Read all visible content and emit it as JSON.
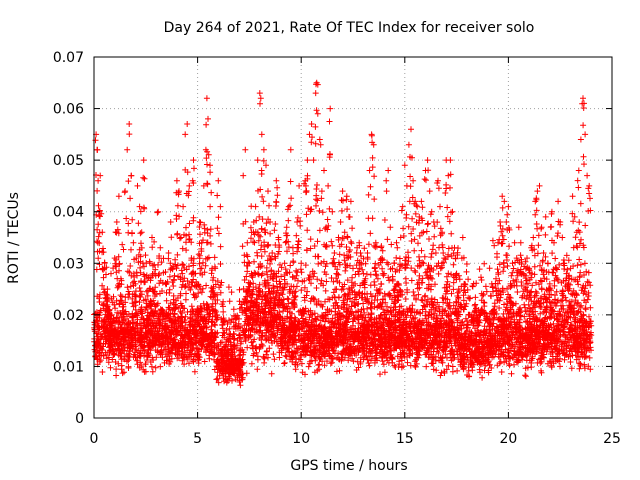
{
  "chart_data": {
    "type": "scatter",
    "title": "Day 264 of 2021, Rate Of TEC Index for receiver solo",
    "xlabel": "GPS time / hours",
    "ylabel": "ROTI / TECUs",
    "xlim": [
      0,
      25
    ],
    "ylim": [
      0,
      0.07
    ],
    "xticks": [
      0,
      5,
      10,
      15,
      20,
      25
    ],
    "xtick_labels": [
      "0",
      "5",
      "10",
      "15",
      "20",
      "25"
    ],
    "yticks": [
      0,
      0.01,
      0.02,
      0.03,
      0.04,
      0.05,
      0.06,
      0.07
    ],
    "ytick_labels": [
      "0",
      "0.01",
      "0.02",
      "0.03",
      "0.04",
      "0.05",
      "0.06",
      "0.07"
    ],
    "grid": true,
    "marker": "plus",
    "color": "#ff0000",
    "series": [
      {
        "name": "ROTI",
        "points": [
          [
            0.05,
            0.014
          ],
          [
            0.1,
            0.055
          ],
          [
            0.15,
            0.052
          ],
          [
            0.2,
            0.046
          ],
          [
            0.25,
            0.04
          ],
          [
            0.3,
            0.047
          ],
          [
            0.4,
            0.036
          ],
          [
            0.5,
            0.029
          ],
          [
            0.6,
            0.024
          ],
          [
            0.7,
            0.021
          ],
          [
            0.8,
            0.018
          ],
          [
            0.9,
            0.016
          ],
          [
            1.0,
            0.031
          ],
          [
            1.1,
            0.038
          ],
          [
            1.2,
            0.043
          ],
          [
            1.3,
            0.027
          ],
          [
            1.4,
            0.022
          ],
          [
            1.5,
            0.044
          ],
          [
            1.6,
            0.052
          ],
          [
            1.7,
            0.057
          ],
          [
            1.8,
            0.047
          ],
          [
            1.9,
            0.034
          ],
          [
            2.0,
            0.026
          ],
          [
            2.1,
            0.045
          ],
          [
            2.2,
            0.041
          ],
          [
            2.3,
            0.036
          ],
          [
            2.4,
            0.05
          ],
          [
            2.5,
            0.023
          ],
          [
            2.6,
            0.019
          ],
          [
            2.7,
            0.03
          ],
          [
            2.8,
            0.035
          ],
          [
            2.9,
            0.028
          ],
          [
            3.0,
            0.024
          ],
          [
            3.1,
            0.04
          ],
          [
            3.2,
            0.033
          ],
          [
            3.3,
            0.021
          ],
          [
            3.4,
            0.017
          ],
          [
            3.5,
            0.026
          ],
          [
            3.6,
            0.032
          ],
          [
            3.7,
            0.038
          ],
          [
            3.8,
            0.029
          ],
          [
            3.9,
            0.022
          ],
          [
            4.0,
            0.046
          ],
          [
            4.1,
            0.044
          ],
          [
            4.2,
            0.035
          ],
          [
            4.3,
            0.041
          ],
          [
            4.4,
            0.055
          ],
          [
            4.5,
            0.057
          ],
          [
            4.6,
            0.045
          ],
          [
            4.7,
            0.031
          ],
          [
            4.8,
            0.05
          ],
          [
            4.9,
            0.028
          ],
          [
            5.0,
            0.021
          ],
          [
            5.1,
            0.038
          ],
          [
            5.2,
            0.034
          ],
          [
            5.3,
            0.045
          ],
          [
            5.4,
            0.052
          ],
          [
            5.45,
            0.062
          ],
          [
            5.5,
            0.058
          ],
          [
            5.6,
            0.049
          ],
          [
            5.7,
            0.029
          ],
          [
            5.8,
            0.024
          ],
          [
            5.9,
            0.019
          ],
          [
            6.0,
            0.046
          ],
          [
            6.1,
            0.041
          ],
          [
            6.2,
            0.016
          ],
          [
            6.3,
            0.013
          ],
          [
            6.4,
            0.012
          ],
          [
            6.5,
            0.011
          ],
          [
            6.6,
            0.01
          ],
          [
            6.7,
            0.009
          ],
          [
            6.8,
            0.012
          ],
          [
            6.9,
            0.014
          ],
          [
            7.0,
            0.016
          ],
          [
            7.1,
            0.022
          ],
          [
            7.2,
            0.047
          ],
          [
            7.3,
            0.052
          ],
          [
            7.4,
            0.034
          ],
          [
            7.5,
            0.03
          ],
          [
            7.6,
            0.028
          ],
          [
            7.7,
            0.036
          ],
          [
            7.8,
            0.041
          ],
          [
            7.9,
            0.05
          ],
          [
            8.0,
            0.063
          ],
          [
            8.05,
            0.062
          ],
          [
            8.1,
            0.055
          ],
          [
            8.2,
            0.052
          ],
          [
            8.3,
            0.049
          ],
          [
            8.4,
            0.044
          ],
          [
            8.5,
            0.038
          ],
          [
            8.6,
            0.032
          ],
          [
            8.7,
            0.028
          ],
          [
            8.8,
            0.046
          ],
          [
            8.9,
            0.035
          ],
          [
            9.0,
            0.026
          ],
          [
            9.1,
            0.024
          ],
          [
            9.2,
            0.03
          ],
          [
            9.3,
            0.037
          ],
          [
            9.4,
            0.041
          ],
          [
            9.5,
            0.052
          ],
          [
            9.6,
            0.033
          ],
          [
            9.7,
            0.027
          ],
          [
            9.8,
            0.038
          ],
          [
            9.9,
            0.045
          ],
          [
            10.0,
            0.03
          ],
          [
            10.1,
            0.021
          ],
          [
            10.2,
            0.046
          ],
          [
            10.3,
            0.05
          ],
          [
            10.4,
            0.055
          ],
          [
            10.5,
            0.057
          ],
          [
            10.6,
            0.05
          ],
          [
            10.7,
            0.063
          ],
          [
            10.75,
            0.065
          ],
          [
            10.8,
            0.059
          ],
          [
            10.9,
            0.054
          ],
          [
            11.0,
            0.044
          ],
          [
            11.1,
            0.048
          ],
          [
            11.2,
            0.037
          ],
          [
            11.3,
            0.045
          ],
          [
            11.4,
            0.06
          ],
          [
            11.5,
            0.04
          ],
          [
            11.6,
            0.032
          ],
          [
            11.7,
            0.028
          ],
          [
            11.8,
            0.035
          ],
          [
            11.9,
            0.038
          ],
          [
            12.0,
            0.044
          ],
          [
            12.1,
            0.036
          ],
          [
            12.2,
            0.043
          ],
          [
            12.3,
            0.039
          ],
          [
            12.4,
            0.042
          ],
          [
            12.5,
            0.029
          ],
          [
            12.6,
            0.026
          ],
          [
            12.7,
            0.033
          ],
          [
            12.8,
            0.034
          ],
          [
            12.9,
            0.03
          ],
          [
            13.0,
            0.028
          ],
          [
            13.1,
            0.027
          ],
          [
            13.2,
            0.032
          ],
          [
            13.3,
            0.048
          ],
          [
            13.4,
            0.055
          ],
          [
            13.5,
            0.053
          ],
          [
            13.6,
            0.034
          ],
          [
            13.7,
            0.027
          ],
          [
            13.8,
            0.025
          ],
          [
            13.9,
            0.031
          ],
          [
            14.0,
            0.028
          ],
          [
            14.1,
            0.046
          ],
          [
            14.2,
            0.048
          ],
          [
            14.3,
            0.037
          ],
          [
            14.4,
            0.029
          ],
          [
            14.5,
            0.025
          ],
          [
            14.6,
            0.034
          ],
          [
            14.7,
            0.026
          ],
          [
            14.8,
            0.035
          ],
          [
            14.9,
            0.041
          ],
          [
            15.0,
            0.049
          ],
          [
            15.1,
            0.045
          ],
          [
            15.2,
            0.053
          ],
          [
            15.3,
            0.056
          ],
          [
            15.4,
            0.046
          ],
          [
            15.5,
            0.042
          ],
          [
            15.6,
            0.041
          ],
          [
            15.7,
            0.039
          ],
          [
            15.8,
            0.042
          ],
          [
            15.9,
            0.036
          ],
          [
            16.0,
            0.048
          ],
          [
            16.1,
            0.05
          ],
          [
            16.2,
            0.044
          ],
          [
            16.3,
            0.04
          ],
          [
            16.4,
            0.038
          ],
          [
            16.5,
            0.032
          ],
          [
            16.6,
            0.046
          ],
          [
            16.7,
            0.041
          ],
          [
            16.8,
            0.036
          ],
          [
            16.9,
            0.031
          ],
          [
            17.0,
            0.05
          ],
          [
            17.1,
            0.047
          ],
          [
            17.2,
            0.05
          ],
          [
            17.3,
            0.04
          ],
          [
            17.4,
            0.033
          ],
          [
            17.5,
            0.028
          ],
          [
            17.6,
            0.025
          ],
          [
            17.7,
            0.022
          ],
          [
            17.8,
            0.035
          ],
          [
            17.9,
            0.026
          ],
          [
            18.0,
            0.018
          ],
          [
            18.1,
            0.02
          ],
          [
            18.2,
            0.016
          ],
          [
            18.3,
            0.018
          ],
          [
            18.4,
            0.022
          ],
          [
            18.5,
            0.017
          ],
          [
            18.6,
            0.019
          ],
          [
            18.7,
            0.021
          ],
          [
            18.8,
            0.024
          ],
          [
            18.9,
            0.016
          ],
          [
            19.0,
            0.015
          ],
          [
            19.1,
            0.018
          ],
          [
            19.2,
            0.026
          ],
          [
            19.3,
            0.021
          ],
          [
            19.4,
            0.027
          ],
          [
            19.5,
            0.034
          ],
          [
            19.6,
            0.038
          ],
          [
            19.7,
            0.043
          ],
          [
            19.8,
            0.042
          ],
          [
            19.9,
            0.038
          ],
          [
            20.0,
            0.041
          ],
          [
            20.1,
            0.026
          ],
          [
            20.2,
            0.03
          ],
          [
            20.3,
            0.034
          ],
          [
            20.4,
            0.031
          ],
          [
            20.5,
            0.037
          ],
          [
            20.6,
            0.034
          ],
          [
            20.7,
            0.028
          ],
          [
            20.8,
            0.025
          ],
          [
            20.9,
            0.031
          ],
          [
            21.0,
            0.029
          ],
          [
            21.1,
            0.033
          ],
          [
            21.2,
            0.035
          ],
          [
            21.3,
            0.042
          ],
          [
            21.4,
            0.044
          ],
          [
            21.5,
            0.045
          ],
          [
            21.6,
            0.037
          ],
          [
            21.7,
            0.032
          ],
          [
            21.8,
            0.039
          ],
          [
            21.9,
            0.03
          ],
          [
            22.0,
            0.026
          ],
          [
            22.1,
            0.04
          ],
          [
            22.2,
            0.034
          ],
          [
            22.3,
            0.029
          ],
          [
            22.4,
            0.042
          ],
          [
            22.5,
            0.038
          ],
          [
            22.6,
            0.035
          ],
          [
            22.7,
            0.03
          ],
          [
            22.8,
            0.028
          ],
          [
            22.9,
            0.026
          ],
          [
            23.0,
            0.029
          ],
          [
            23.1,
            0.043
          ],
          [
            23.2,
            0.039
          ],
          [
            23.3,
            0.036
          ],
          [
            23.4,
            0.048
          ],
          [
            23.5,
            0.054
          ],
          [
            23.6,
            0.062
          ],
          [
            23.65,
            0.061
          ],
          [
            23.7,
            0.055
          ],
          [
            23.8,
            0.047
          ],
          [
            23.9,
            0.045
          ]
        ],
        "band": {
          "description": "dense cloud of points",
          "x": [
            0,
            24
          ],
          "y_typical": [
            0.005,
            0.03
          ]
        }
      }
    ]
  }
}
